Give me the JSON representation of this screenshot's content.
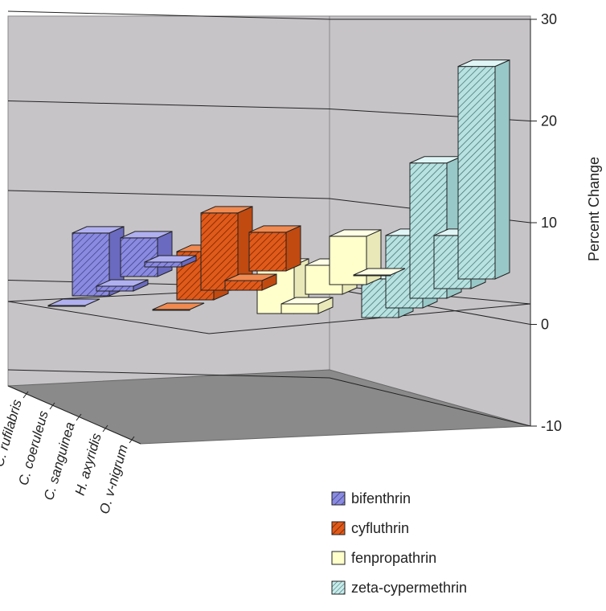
{
  "chart_data": {
    "type": "bar",
    "subtype": "3d-clustered-bar",
    "title": "",
    "xlabel": "",
    "ylabel": "Percent Change",
    "ylim": [
      -10,
      30
    ],
    "yticks": [
      -10,
      0,
      10,
      20,
      30
    ],
    "grid": true,
    "legend_position": "bottom-right",
    "categories": [
      "C. rufilabris",
      "C. coeruleus",
      "C. sanguinea",
      "H. axyridis",
      "O. v-nigrum"
    ],
    "series": [
      {
        "name": "bifenthrin",
        "values": [
          0.5,
          4,
          -0.5,
          6.5,
          0
        ],
        "color": "#8a8ae0",
        "pattern": "hatch"
      },
      {
        "name": "cyfluthrin",
        "values": [
          4,
          -1,
          8,
          5,
          0
        ],
        "color": "#e05a1a",
        "pattern": "hatch"
      },
      {
        "name": "fenpropathrin",
        "values": [
          0,
          5,
          3,
          -1,
          5
        ],
        "color": "#ffffcc",
        "pattern": "solid"
      },
      {
        "name": "zeta-cypermethrin",
        "values": [
          22,
          5.5,
          14,
          7.5,
          4
        ],
        "color": "#c8ecec",
        "pattern": "hatch"
      }
    ]
  }
}
